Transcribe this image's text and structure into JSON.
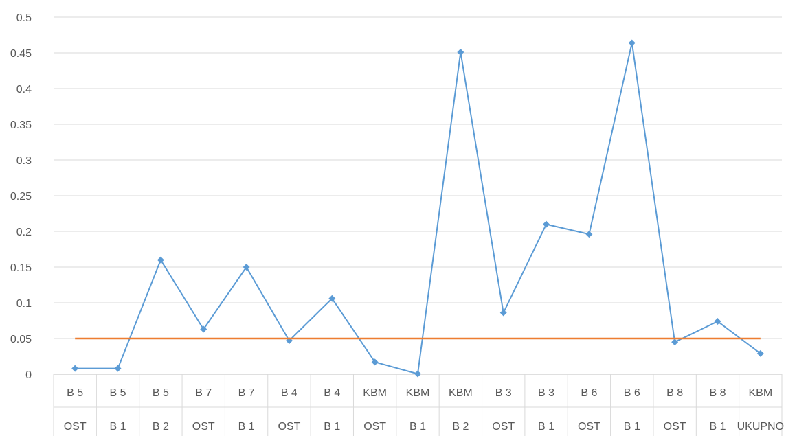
{
  "chart_data": {
    "type": "line",
    "categories": [
      [
        "B 5",
        "OST"
      ],
      [
        "B 5",
        "B 1"
      ],
      [
        "B 5",
        "B 2"
      ],
      [
        "B 7",
        "OST"
      ],
      [
        "B 7",
        "B 1"
      ],
      [
        "B 4",
        "OST"
      ],
      [
        "B 4",
        "B 1"
      ],
      [
        "KBM",
        "OST"
      ],
      [
        "KBM",
        "B 1"
      ],
      [
        "KBM",
        "B 2"
      ],
      [
        "B 3",
        "OST"
      ],
      [
        "B 3",
        "B 1"
      ],
      [
        "B 6",
        "OST"
      ],
      [
        "B 6",
        "B 1"
      ],
      [
        "B 8",
        "OST"
      ],
      [
        "B 8",
        "B 1"
      ],
      [
        "KBM",
        "UKUPNO"
      ]
    ],
    "series": [
      {
        "color": "#5b9bd5",
        "marker": "diamond",
        "values": [
          0.008,
          0.008,
          0.16,
          0.063,
          0.15,
          0.047,
          0.106,
          0.017,
          0.0005,
          0.451,
          0.086,
          0.21,
          0.196,
          0.464,
          0.045,
          0.074,
          0.029
        ]
      },
      {
        "color": "#ed7d31",
        "marker": "none",
        "values": [
          0.05,
          0.05,
          0.05,
          0.05,
          0.05,
          0.05,
          0.05,
          0.05,
          0.05,
          0.05,
          0.05,
          0.05,
          0.05,
          0.05,
          0.05,
          0.05,
          0.05
        ]
      }
    ],
    "y_ticks": [
      "0",
      "0.05",
      "0.1",
      "0.15",
      "0.2",
      "0.25",
      "0.3",
      "0.35",
      "0.4",
      "0.45",
      "0.5"
    ],
    "ylim": [
      0,
      0.5
    ],
    "grid": true,
    "legend": "none"
  }
}
